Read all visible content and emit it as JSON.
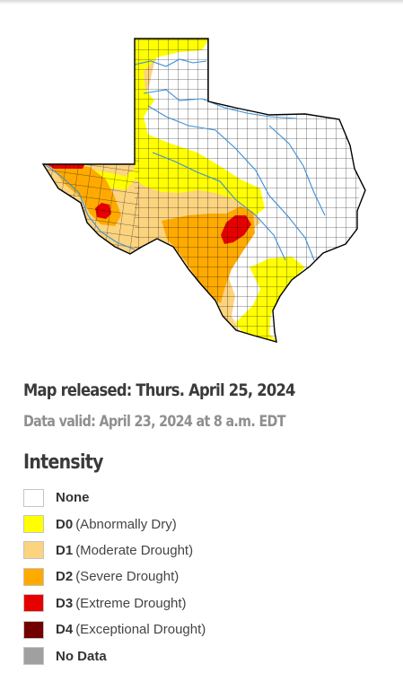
{
  "map": {
    "colors": {
      "none": "#ffffff",
      "d0": "#ffff00",
      "d1": "#fcd37f",
      "d2": "#ffaa00",
      "d3": "#e60000",
      "d4": "#730000",
      "no_data": "#a0a0a0",
      "border": "#000000",
      "rivers": "#3c8fd6"
    }
  },
  "info": {
    "released": "Map released: Thurs. April 25, 2024",
    "valid": "Data valid: April 23, 2024 at 8 a.m. EDT"
  },
  "legend": {
    "title": "Intensity",
    "items": [
      {
        "code": "None",
        "desc": "",
        "color": "#ffffff"
      },
      {
        "code": "D0",
        "desc": "(Abnormally Dry)",
        "color": "#ffff00"
      },
      {
        "code": "D1",
        "desc": "(Moderate Drought)",
        "color": "#fcd37f"
      },
      {
        "code": "D2",
        "desc": "(Severe Drought)",
        "color": "#ffaa00"
      },
      {
        "code": "D3",
        "desc": "(Extreme Drought)",
        "color": "#e60000"
      },
      {
        "code": "D4",
        "desc": "(Exceptional Drought)",
        "color": "#730000"
      },
      {
        "code": "No Data",
        "desc": "",
        "color": "#a0a0a0"
      }
    ]
  }
}
